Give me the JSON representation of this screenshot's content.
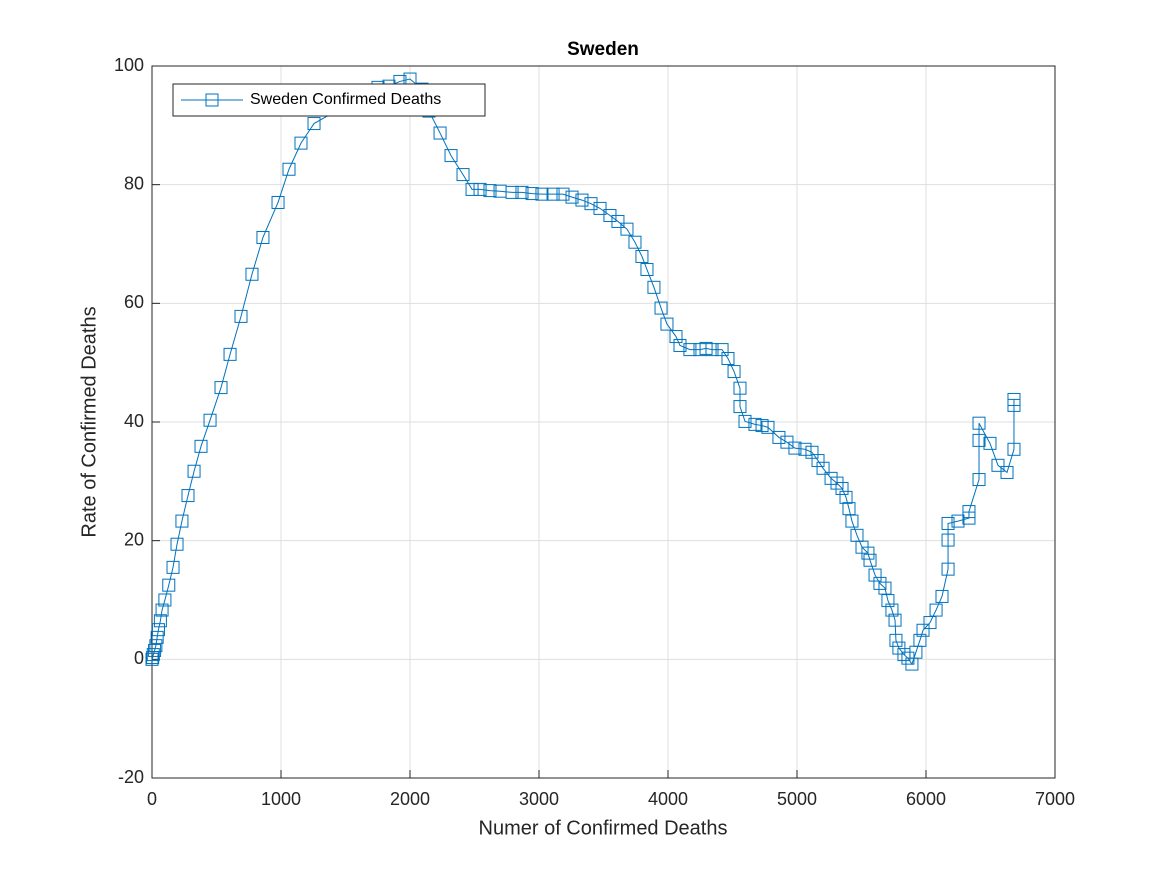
{
  "chart_data": {
    "type": "line",
    "title": "Sweden",
    "x_label": "Numer of Confirmed Deaths",
    "y_label": "Rate of Confirmed Deaths",
    "xlim": [
      0,
      7000
    ],
    "ylim": [
      -20,
      100
    ],
    "xticks": [
      0,
      1000,
      2000,
      3000,
      4000,
      5000,
      6000,
      7000
    ],
    "yticks": [
      -20,
      0,
      20,
      40,
      60,
      80,
      100
    ],
    "grid": true,
    "legend": "upper left",
    "marker": "square",
    "x": [
      0,
      5,
      10,
      20,
      30,
      40,
      50,
      65,
      78,
      100,
      130,
      163,
      194,
      232,
      279,
      326,
      380,
      450,
      535,
      605,
      690,
      775,
      860,
      977,
      1062,
      1155,
      1256,
      1752,
      1837,
      1922,
      2000,
      2093,
      2147,
      2233,
      2318,
      2411,
      2481,
      2543,
      2620,
      2698,
      2791,
      2868,
      2946,
      3023,
      3109,
      3186,
      3256,
      3333,
      3403,
      3473,
      3550,
      3612,
      3682,
      3744,
      3798,
      3837,
      3891,
      3946,
      3992,
      4062,
      4093,
      4170,
      4248,
      4295,
      4341,
      4419,
      4465,
      4512,
      4558,
      4558,
      4597,
      4674,
      4729,
      4775,
      4860,
      4922,
      4984,
      5062,
      5116,
      5163,
      5202,
      5264,
      5310,
      5349,
      5380,
      5403,
      5426,
      5465,
      5504,
      5550,
      5566,
      5605,
      5643,
      5682,
      5705,
      5736,
      5760,
      5767,
      5790,
      5829,
      5860,
      5891,
      5922,
      5953,
      5977,
      6031,
      6078,
      6124,
      6171,
      6171,
      6171,
      6248,
      6333,
      6333,
      6411,
      6411,
      6411,
      6496,
      6558,
      6628,
      6682,
      6682,
      6682
    ],
    "series": [
      {
        "name": "Sweden Confirmed Deaths",
        "color": "#0072bd",
        "values": [
          0,
          0.3,
          0.8,
          1.5,
          2.3,
          3.7,
          5,
          6.5,
          8.3,
          10,
          12.5,
          15.5,
          19.4,
          23.3,
          27.6,
          31.7,
          35.9,
          40.3,
          45.8,
          51.4,
          57.8,
          64.9,
          71.1,
          77,
          82.6,
          87,
          90.3,
          96.4,
          96.6,
          97.4,
          97.8,
          96.1,
          92.4,
          88.7,
          84.9,
          81.7,
          79.2,
          79.2,
          79,
          78.9,
          78.7,
          78.7,
          78.5,
          78.4,
          78.4,
          78.4,
          77.9,
          77.4,
          76.8,
          76,
          74.8,
          73.8,
          72.5,
          70.3,
          67.9,
          65.7,
          62.7,
          59.2,
          56.5,
          54.4,
          52.9,
          52.2,
          52.2,
          52.4,
          52.2,
          52.2,
          50.7,
          48.5,
          45.7,
          42.6,
          40.1,
          39.6,
          39.4,
          39.1,
          37.4,
          36.6,
          35.6,
          35.4,
          34.9,
          33.5,
          32.2,
          30.5,
          29.7,
          28.8,
          27.3,
          25.4,
          23.3,
          20.9,
          18.9,
          17.9,
          16.7,
          14.2,
          12.8,
          12,
          9.9,
          8.3,
          6.6,
          3.2,
          1.9,
          0.8,
          0.2,
          -0.8,
          1.2,
          3.2,
          4.9,
          6.2,
          8.3,
          10.6,
          15.2,
          20.1,
          22.9,
          23.3,
          23.8,
          24.9,
          30.3,
          36.9,
          39.8,
          36.4,
          32.7,
          31.5,
          35.4,
          42.8,
          43.8
        ]
      }
    ]
  }
}
